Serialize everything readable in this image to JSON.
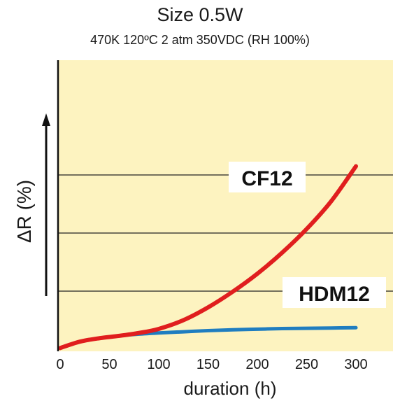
{
  "chart_data": {
    "type": "line",
    "title": "Size 0.5W",
    "subtitle": "470K 120ºC 2 atm 350VDC (RH 100%)",
    "xlabel": "duration (h)",
    "ylabel": "ΔR (%)",
    "xlim": [
      0,
      340
    ],
    "x_ticks": [
      0,
      50,
      100,
      150,
      200,
      250,
      300
    ],
    "y_ticks_unlabeled": [
      1,
      2,
      3
    ],
    "ylim": [
      0,
      4
    ],
    "grid": "horizontal",
    "colors": {
      "background": "#fdf3c0",
      "CF12": "#e01e1e",
      "HDM12": "#1f7dc0",
      "grid": "#222222",
      "axis": "#111111"
    },
    "series": [
      {
        "name": "CF12",
        "x": [
          0,
          20,
          40,
          60,
          80,
          100,
          125,
          150,
          175,
          200,
          225,
          250,
          275,
          300
        ],
        "y": [
          0.02,
          0.13,
          0.19,
          0.23,
          0.28,
          0.35,
          0.5,
          0.72,
          0.99,
          1.3,
          1.66,
          2.07,
          2.55,
          3.15
        ]
      },
      {
        "name": "HDM12",
        "x": [
          0,
          20,
          40,
          60,
          80,
          100,
          125,
          150,
          175,
          200,
          225,
          250,
          275,
          300
        ],
        "y": [
          0.02,
          0.13,
          0.19,
          0.23,
          0.26,
          0.28,
          0.3,
          0.32,
          0.335,
          0.345,
          0.355,
          0.36,
          0.365,
          0.37
        ]
      }
    ]
  }
}
